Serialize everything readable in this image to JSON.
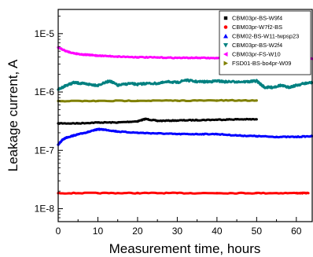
{
  "chart_data": {
    "type": "line",
    "xlabel": "Measurement time, hours",
    "ylabel": "Leakage current, A",
    "xlim": [
      0,
      64
    ],
    "ylim": [
      6e-09,
      2.6e-05
    ],
    "yscale": "log",
    "x_ticks": [
      0,
      10,
      20,
      30,
      40,
      50,
      60
    ],
    "x_tick_labels": [
      "0",
      "10",
      "20",
      "30",
      "40",
      "50",
      "60"
    ],
    "y_ticks": [
      1e-08,
      1e-07,
      1e-06,
      1e-05
    ],
    "y_tick_labels": [
      "1E-8",
      "1E-7",
      "1E-6",
      "1E-5"
    ],
    "grid": false,
    "legend_position": "top-right",
    "series": [
      {
        "name": "CBM03pr-BS-W9f4",
        "color": "#000000",
        "marker": "square",
        "x": [
          0,
          5,
          10,
          15,
          20,
          22,
          25,
          30,
          35,
          40,
          45,
          50
        ],
        "y": [
          2.9e-07,
          2.9e-07,
          3e-07,
          3e-07,
          3.15e-07,
          3.45e-07,
          3.2e-07,
          3.25e-07,
          3.3e-07,
          3.35e-07,
          3.4e-07,
          3.4e-07
        ]
      },
      {
        "name": "CBM03pr-W7f2-BS",
        "color": "#ff0000",
        "marker": "circle",
        "x": [
          0,
          10,
          20,
          30,
          40,
          50,
          60,
          63
        ],
        "y": [
          1.85e-08,
          1.85e-08,
          1.85e-08,
          1.85e-08,
          1.85e-08,
          1.85e-08,
          1.85e-08,
          1.85e-08
        ]
      },
      {
        "name": "CBM02-BS-W11-twpsp23",
        "color": "#0000ff",
        "marker": "triangle-up",
        "x": [
          0,
          1,
          2,
          4,
          6,
          8,
          10,
          12,
          15,
          20,
          25,
          30,
          35,
          40,
          45,
          50,
          55,
          60,
          64
        ],
        "y": [
          1.25e-07,
          1.5e-07,
          1.65e-07,
          1.8e-07,
          1.95e-07,
          2.1e-07,
          2.3e-07,
          2.25e-07,
          2.1e-07,
          2e-07,
          1.95e-07,
          1.9e-07,
          1.9e-07,
          1.9e-07,
          1.8e-07,
          1.75e-07,
          1.7e-07,
          1.7e-07,
          1.75e-07
        ]
      },
      {
        "name": "CBM03pr-BS-W2f4",
        "color": "#008080",
        "marker": "triangle-down",
        "x": [
          0,
          2,
          4,
          6,
          8,
          10,
          13,
          15,
          18,
          20,
          22,
          25,
          28,
          30,
          32,
          35,
          38,
          40,
          42,
          45,
          48,
          50,
          52,
          54,
          56,
          58,
          60,
          62,
          64
        ],
        "y": [
          1.1e-06,
          1.3e-06,
          1.45e-06,
          1.4e-06,
          1.35e-06,
          1.3e-06,
          1.55e-06,
          1.3e-06,
          1.4e-06,
          1.35e-06,
          1.4e-06,
          1.4e-06,
          1.5e-06,
          1.45e-06,
          1.6e-06,
          1.5e-06,
          1.5e-06,
          1.55e-06,
          1.5e-06,
          1.5e-06,
          1.5e-06,
          1.55e-06,
          1.2e-06,
          1.2e-06,
          1.3e-06,
          1.2e-06,
          1.3e-06,
          1.4e-06,
          1.45e-06
        ]
      },
      {
        "name": "CBM03pr-FS-W10",
        "color": "#ff00ff",
        "marker": "triangle-left",
        "x": [
          0,
          2,
          4,
          6,
          8,
          10,
          15,
          20,
          25,
          30,
          35,
          40,
          45,
          50,
          55,
          60,
          64
        ],
        "y": [
          5.8e-06,
          5e-06,
          4.6e-06,
          4.4e-06,
          4.3e-06,
          4.2e-06,
          4.05e-06,
          3.95e-06,
          3.9e-06,
          3.85e-06,
          3.85e-06,
          3.8e-06,
          3.8e-06,
          3.75e-06,
          3.7e-06,
          3.7e-06,
          3.7e-06
        ]
      },
      {
        "name": "FSD01-BS-bo4pr-W09",
        "color": "#808000",
        "marker": "triangle-right",
        "x": [
          0,
          10,
          20,
          30,
          40,
          50
        ],
        "y": [
          7e-07,
          7e-07,
          7.1e-07,
          7.1e-07,
          7.15e-07,
          7.15e-07
        ]
      }
    ]
  }
}
